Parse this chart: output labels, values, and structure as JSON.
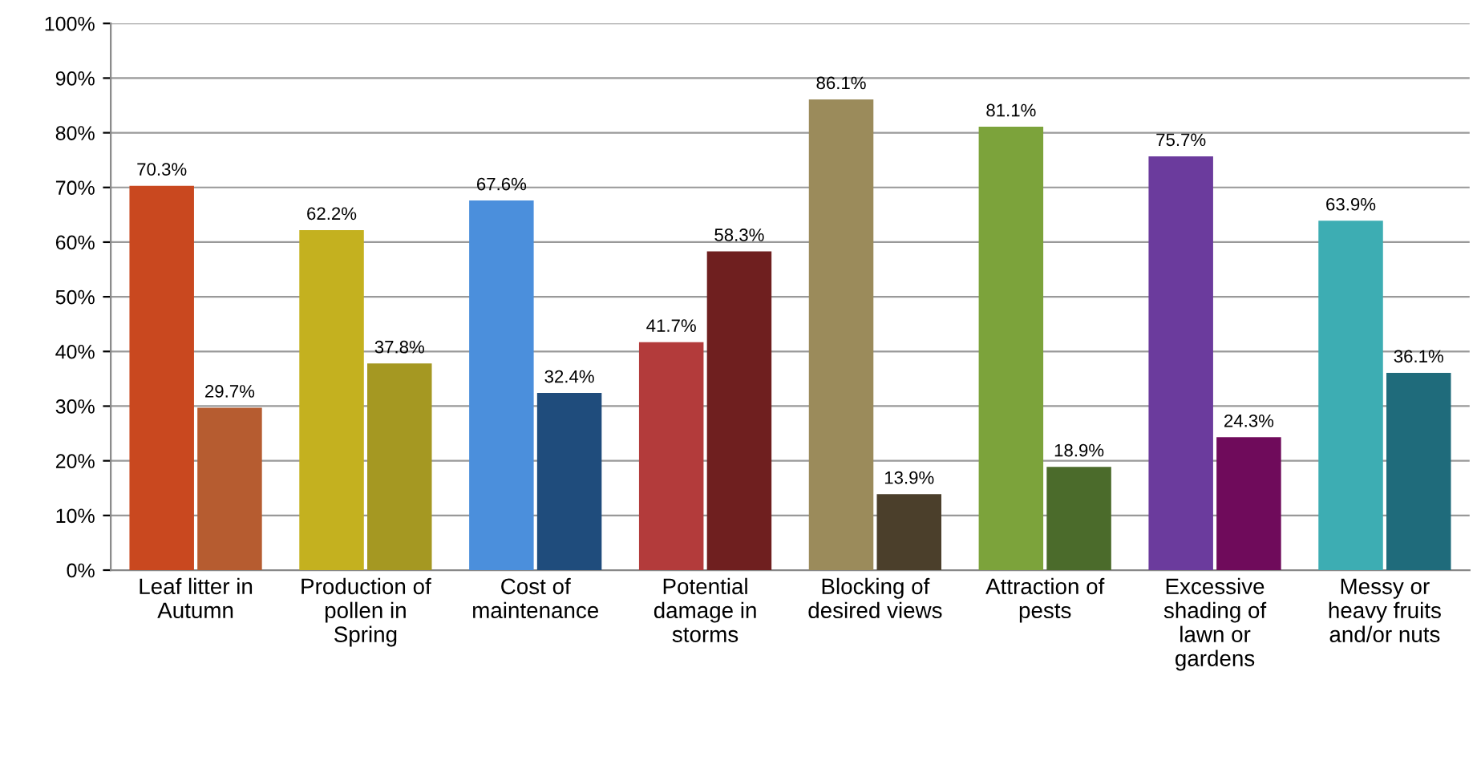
{
  "chart_data": {
    "type": "bar",
    "categories": [
      "Leaf litter in\nAutumn",
      "Production of\npollen in\nSpring",
      "Cost of\nmaintenance",
      "Potential\ndamage in\nstorms",
      "Blocking of\ndesired views",
      "Attraction of\npests",
      "Excessive\nshading of\nlawn or\ngardens",
      "Messy or\nheavy fruits\nand/or nuts"
    ],
    "series": [
      {
        "colors": [
          "#c9481f",
          "#c4b11f",
          "#4b8fdc",
          "#b33b3b",
          "#9b8b5b",
          "#7ca33b",
          "#6b3b9d",
          "#3dadb3"
        ],
        "values": [
          70.3,
          62.2,
          67.6,
          41.7,
          86.1,
          81.1,
          75.7,
          63.9
        ],
        "value_labels": [
          "70.3%",
          "62.2%",
          "67.6%",
          "41.7%",
          "86.1%",
          "81.1%",
          "75.7%",
          "63.9%"
        ]
      },
      {
        "colors": [
          "#b65c30",
          "#a59822",
          "#1f4c7c",
          "#6f1f1f",
          "#4b3f2b",
          "#4b6b2b",
          "#6f0b5b",
          "#1f6b7b"
        ],
        "values": [
          29.7,
          37.8,
          32.4,
          58.3,
          13.9,
          18.9,
          24.3,
          36.1
        ],
        "value_labels": [
          "29.7%",
          "37.8%",
          "32.4%",
          "58.3%",
          "13.9%",
          "18.9%",
          "24.3%",
          "36.1%"
        ]
      }
    ],
    "ylim": [
      0,
      100
    ],
    "yticks": [
      {
        "value": 0,
        "label": "0%"
      },
      {
        "value": 10,
        "label": "10%"
      },
      {
        "value": 20,
        "label": "20%"
      },
      {
        "value": 30,
        "label": "30%"
      },
      {
        "value": 40,
        "label": "40%"
      },
      {
        "value": 50,
        "label": "50%"
      },
      {
        "value": 60,
        "label": "60%"
      },
      {
        "value": 70,
        "label": "70%"
      },
      {
        "value": 80,
        "label": "80%"
      },
      {
        "value": 90,
        "label": "90%"
      },
      {
        "value": 100,
        "label": "100%"
      }
    ],
    "grid": "y"
  }
}
